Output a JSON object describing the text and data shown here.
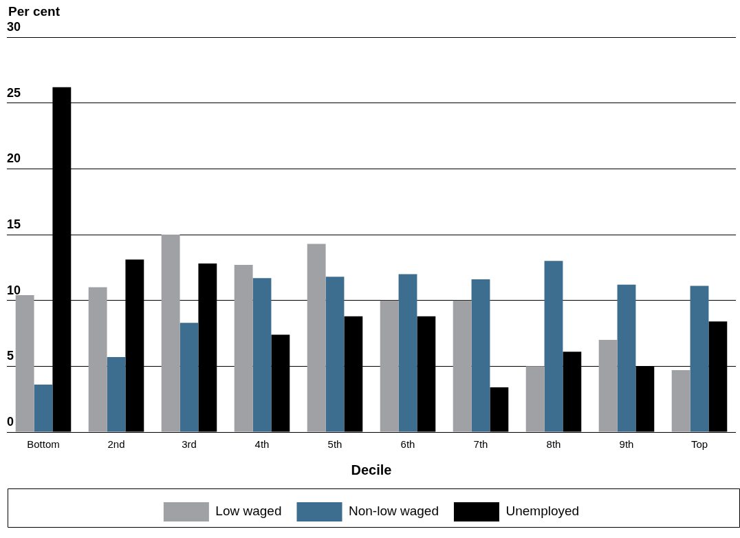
{
  "chart_data": {
    "type": "bar",
    "ylabel": "Per cent",
    "xlabel": "Decile",
    "categories": [
      "Bottom",
      "2nd",
      "3rd",
      "4th",
      "5th",
      "6th",
      "7th",
      "8th",
      "9th",
      "Top"
    ],
    "series": [
      {
        "name": "Low waged",
        "color": "#a0a1a5",
        "values": [
          10.4,
          11.0,
          15.0,
          12.7,
          14.3,
          10.0,
          10.0,
          5.0,
          7.0,
          4.7
        ]
      },
      {
        "name": "Non-low waged",
        "color": "#3d6e8f",
        "values": [
          3.6,
          5.7,
          8.3,
          11.7,
          11.8,
          12.0,
          11.6,
          13.0,
          11.2,
          11.1
        ]
      },
      {
        "name": "Unemployed",
        "color": "#000000",
        "values": [
          26.2,
          13.1,
          12.8,
          7.4,
          8.8,
          8.8,
          3.4,
          6.1,
          5.0,
          8.4
        ]
      }
    ],
    "ylim": [
      0,
      30
    ],
    "yticks": [
      0,
      5,
      10,
      15,
      20,
      25,
      30
    ],
    "grid": "y",
    "legend": "bottom"
  }
}
